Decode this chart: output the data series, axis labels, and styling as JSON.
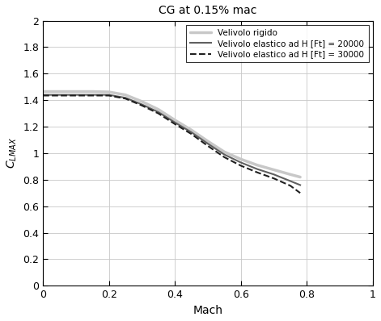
{
  "title": "CG at 0.15% mac",
  "xlabel": "Mach",
  "ylabel": "C_{LMAX}",
  "xlim": [
    0,
    1
  ],
  "ylim": [
    0,
    2
  ],
  "xticks": [
    0,
    0.2,
    0.4,
    0.6,
    0.8,
    1.0
  ],
  "yticks": [
    0,
    0.2,
    0.4,
    0.6,
    0.8,
    1.0,
    1.2,
    1.4,
    1.6,
    1.8,
    2.0
  ],
  "legend": [
    {
      "label": "Velivolo rigido",
      "color": "#c8c8c8",
      "linestyle": "-",
      "linewidth": 2.5
    },
    {
      "label": "Velivolo elastico ad H [Ft] = 20000",
      "color": "#606060",
      "linestyle": "-",
      "linewidth": 1.5
    },
    {
      "label": "Velivolo elastico ad H [Ft] = 30000",
      "color": "#202020",
      "linestyle": "--",
      "linewidth": 1.5
    }
  ],
  "mach_rigid": [
    0.0,
    0.05,
    0.1,
    0.15,
    0.2,
    0.25,
    0.3,
    0.35,
    0.4,
    0.45,
    0.5,
    0.55,
    0.6,
    0.65,
    0.7,
    0.75,
    0.78
  ],
  "clmax_rigid": [
    1.465,
    1.465,
    1.465,
    1.465,
    1.462,
    1.44,
    1.39,
    1.33,
    1.25,
    1.175,
    1.09,
    1.01,
    0.955,
    0.91,
    0.875,
    0.84,
    0.82
  ],
  "mach_e20": [
    0.0,
    0.05,
    0.1,
    0.15,
    0.2,
    0.25,
    0.3,
    0.35,
    0.4,
    0.45,
    0.5,
    0.55,
    0.6,
    0.65,
    0.7,
    0.75,
    0.78
  ],
  "clmax_e20": [
    1.44,
    1.44,
    1.44,
    1.44,
    1.44,
    1.418,
    1.368,
    1.31,
    1.232,
    1.158,
    1.072,
    0.99,
    0.93,
    0.88,
    0.84,
    0.79,
    0.76
  ],
  "mach_e30": [
    0.0,
    0.05,
    0.1,
    0.15,
    0.2,
    0.25,
    0.3,
    0.35,
    0.4,
    0.45,
    0.5,
    0.55,
    0.6,
    0.65,
    0.7,
    0.75,
    0.78
  ],
  "clmax_e30": [
    1.435,
    1.435,
    1.435,
    1.435,
    1.435,
    1.412,
    1.36,
    1.3,
    1.22,
    1.145,
    1.055,
    0.97,
    0.906,
    0.855,
    0.81,
    0.755,
    0.7
  ],
  "bg_color": "#ffffff",
  "grid_color": "#c8c8c8"
}
